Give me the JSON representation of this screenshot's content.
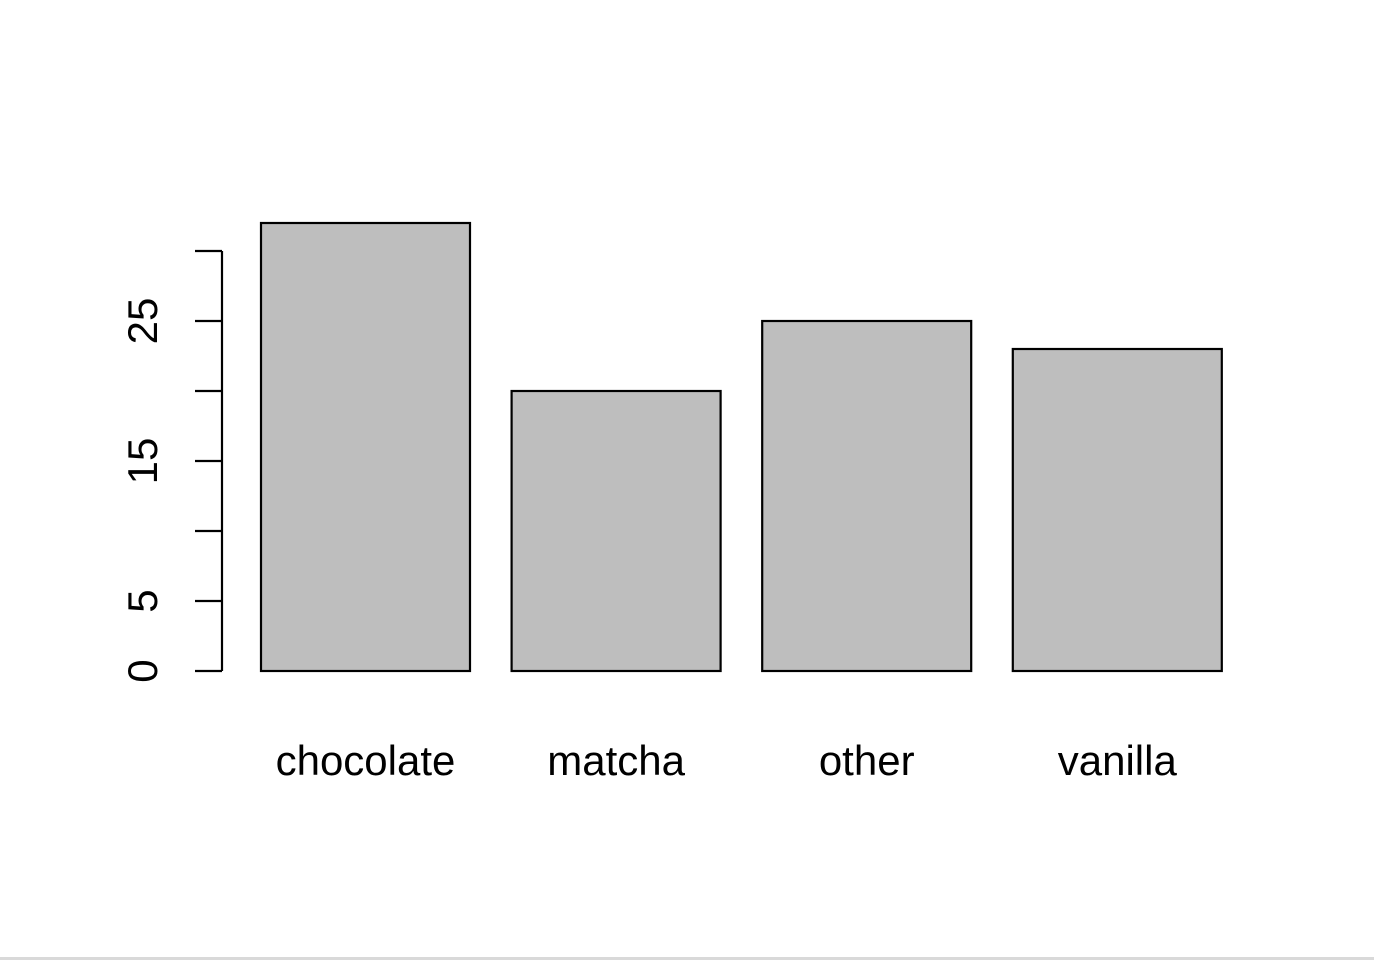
{
  "chart_data": {
    "type": "bar",
    "title": "",
    "xlabel": "",
    "ylabel": "",
    "categories": [
      "chocolate",
      "matcha",
      "other",
      "vanilla"
    ],
    "values": [
      32,
      20,
      25,
      23
    ],
    "ylim": [
      0,
      30
    ],
    "yticks": [
      0,
      5,
      10,
      15,
      20,
      25,
      30
    ],
    "ytick_labels": [
      "0",
      "5",
      "",
      "15",
      "",
      "25",
      ""
    ],
    "grid": false,
    "legend": "none",
    "bar_fill": "#bebebe",
    "bar_stroke": "#000000"
  }
}
